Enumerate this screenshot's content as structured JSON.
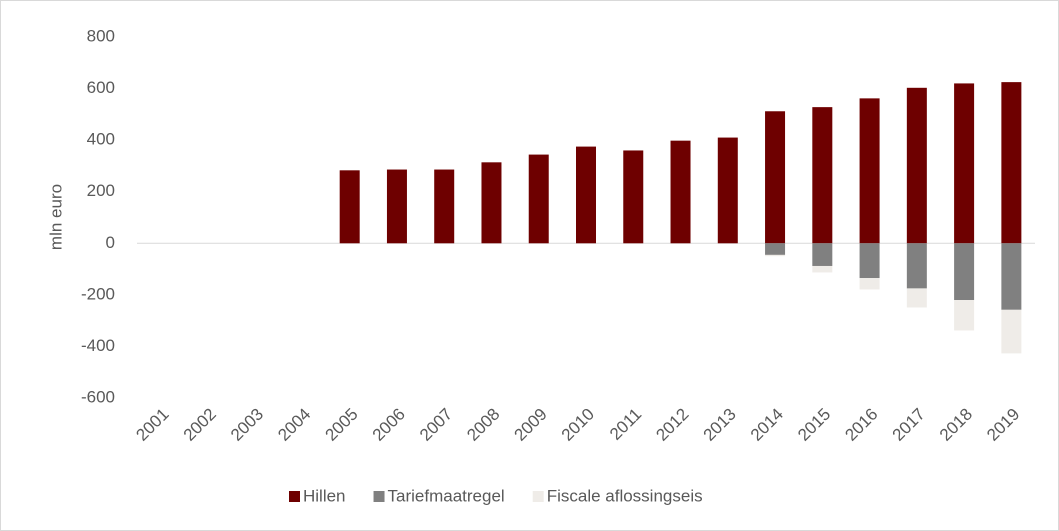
{
  "chart_data": {
    "type": "stacked_bar",
    "y_label": "mln euro",
    "categories": [
      "2001",
      "2002",
      "2003",
      "2004",
      "2005",
      "2006",
      "2007",
      "2008",
      "2009",
      "2010",
      "2011",
      "2012",
      "2013",
      "2014",
      "2015",
      "2016",
      "2017",
      "2018",
      "2019"
    ],
    "series": [
      {
        "name": "Hillen",
        "color": "#6e0000",
        "values": [
          null,
          null,
          null,
          null,
          283,
          286,
          286,
          314,
          344,
          375,
          360,
          398,
          410,
          512,
          528,
          562,
          603,
          620,
          625
        ]
      },
      {
        "name": "Tariefmaatregel",
        "color": "#808080",
        "values": [
          null,
          null,
          null,
          null,
          null,
          null,
          null,
          null,
          null,
          null,
          null,
          null,
          null,
          -45,
          -88,
          -135,
          -175,
          -220,
          -258
        ]
      },
      {
        "name": "Fiscale aflossingseis",
        "color": "#efece8",
        "values": [
          null,
          null,
          null,
          null,
          null,
          null,
          null,
          null,
          null,
          null,
          null,
          null,
          null,
          -5,
          -25,
          -44,
          -74,
          -118,
          -169
        ]
      }
    ],
    "ylim": [
      -600,
      800
    ],
    "yticks": [
      -600,
      -400,
      -200,
      0,
      200,
      400,
      600,
      800
    ],
    "legend": "bottom"
  }
}
